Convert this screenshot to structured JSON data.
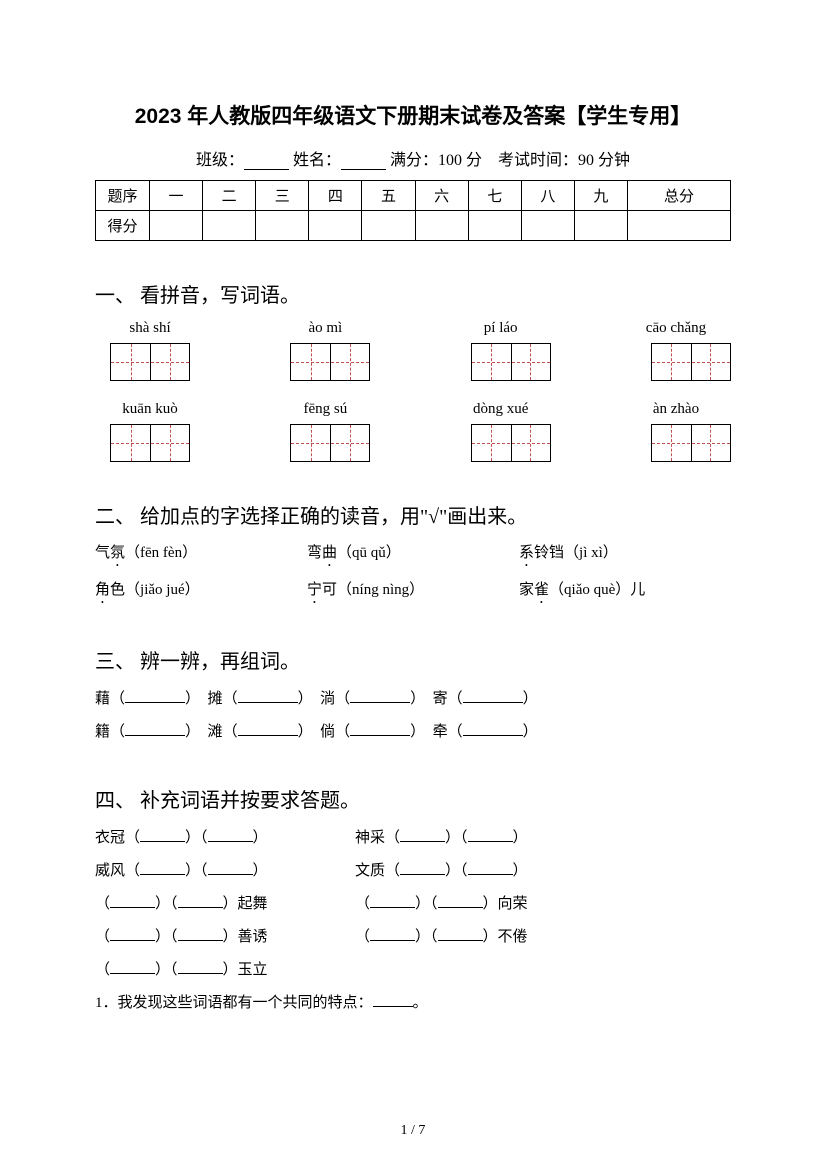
{
  "title": "2023 年人教版四年级语文下册期末试卷及答案【学生专用】",
  "header": {
    "class_label": "班级：",
    "name_label": "姓名：",
    "fullscore_label": "满分：",
    "fullscore_value": "100 分",
    "time_label": "考试时间：",
    "time_value": "90 分钟"
  },
  "score_table": {
    "row1": [
      "题序",
      "一",
      "二",
      "三",
      "四",
      "五",
      "六",
      "七",
      "八",
      "九",
      "总分"
    ],
    "row2_label": "得分"
  },
  "q1": {
    "title": "一、 看拼音，写词语。",
    "pinyin_row1": [
      "shà shí",
      "ào mì",
      "pí láo",
      "cāo chǎng"
    ],
    "pinyin_row2": [
      "kuān kuò",
      "fēng sú",
      "dòng xué",
      "àn zhào"
    ]
  },
  "q2": {
    "title": "二、 给加点的字选择正确的读音，用\"√\"画出来。",
    "row1": [
      {
        "word": "气氛",
        "pinyin": "（fēn fèn）"
      },
      {
        "word": "弯曲",
        "pinyin": "（qū qǔ）"
      },
      {
        "word": "系铃铛",
        "pinyin": "（jì xì）"
      }
    ],
    "row2": [
      {
        "word": "角色",
        "pinyin": "（jiǎo jué）"
      },
      {
        "word": "宁可",
        "pinyin": "（níng nìng）"
      },
      {
        "word": "家雀",
        "pinyin": "（qiǎo què）",
        "suffix": "儿"
      }
    ]
  },
  "q3": {
    "title": "三、 辨一辨，再组词。",
    "row1": [
      "藉",
      "摊",
      "淌",
      "寄"
    ],
    "row2": [
      "籍",
      "滩",
      "倘",
      "牵"
    ]
  },
  "q4": {
    "title": "四、 补充词语并按要求答题。",
    "items": [
      {
        "left_prefix": "衣冠",
        "right_prefix": "神采"
      },
      {
        "left_prefix": "威风",
        "right_prefix": "文质"
      },
      {
        "left_suffix": "起舞",
        "right_suffix": "向荣"
      },
      {
        "left_suffix": "善诱",
        "right_suffix": "不倦"
      },
      {
        "left_suffix": "玉立"
      }
    ],
    "question1": "1．我发现这些词语都有一个共同的特点："
  },
  "page_number": "1 / 7"
}
